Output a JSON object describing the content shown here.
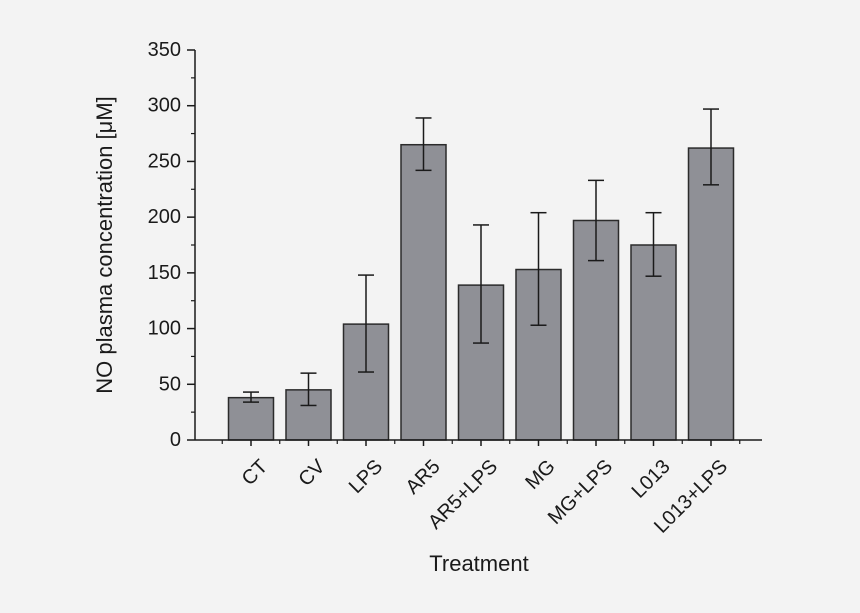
{
  "chart_data": {
    "type": "bar",
    "xlabel": "Treatment",
    "ylabel": "NO plasma concentration [μM]",
    "ylim": [
      0,
      350
    ],
    "yticks": [
      0,
      50,
      100,
      150,
      200,
      250,
      300,
      350
    ],
    "categories": [
      "CT",
      "CV",
      "LPS",
      "AR5",
      "AR5+LPS",
      "MG",
      "MG+LPS",
      "L013",
      "L013+LPS"
    ],
    "values": [
      38,
      45,
      104,
      265,
      139,
      153,
      197,
      175,
      262
    ],
    "error_low": [
      34,
      31,
      61,
      242,
      87,
      103,
      161,
      147,
      229
    ],
    "error_high": [
      43,
      60,
      148,
      289,
      193,
      204,
      233,
      204,
      297
    ],
    "grid": false,
    "legend": "none",
    "colors": {
      "bar": "#8f9096",
      "bar_stroke": "#2b2b2b",
      "axis": "#1a1a1a",
      "background": "#f3f3f3"
    }
  }
}
